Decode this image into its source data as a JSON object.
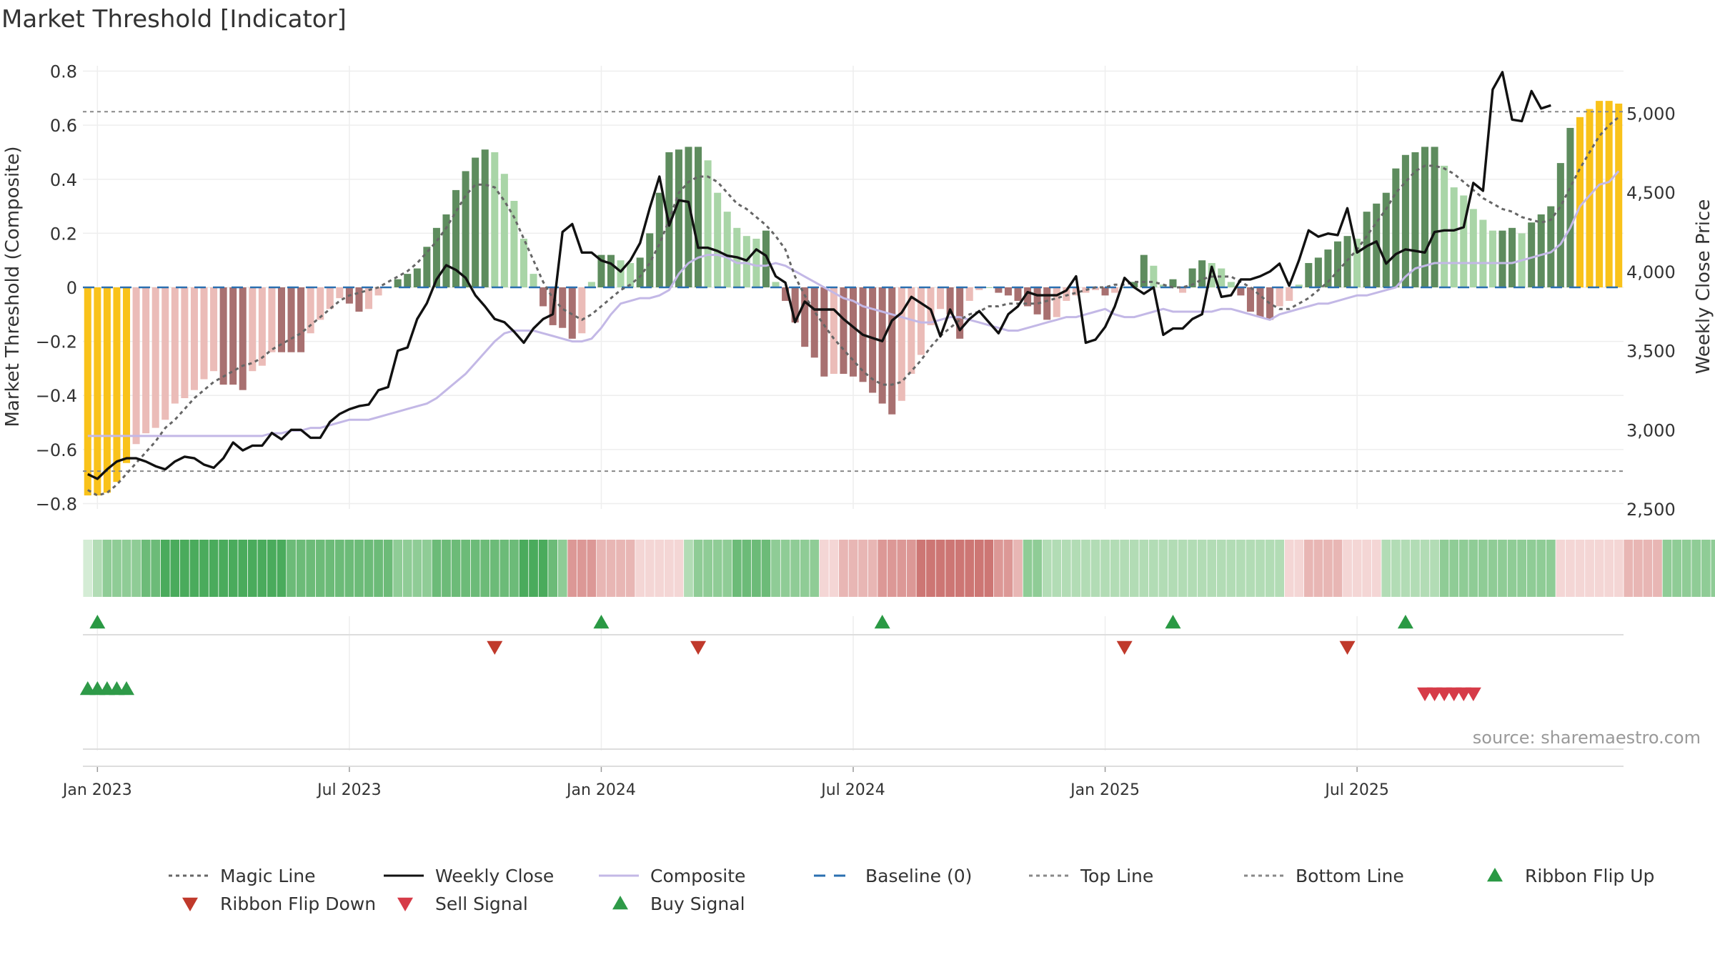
{
  "chart_data": {
    "type": "bar",
    "title": "Market Threshold [Indicator]",
    "ylabel_left": "Market Threshold (Composite)",
    "ylabel_right": "Weekly Close Price",
    "source_note": "source: sharemaestro.com",
    "ylim_left": [
      -0.82,
      0.82
    ],
    "ylim_right": [
      2500,
      5300
    ],
    "left_ticks": [
      0.8,
      0.6,
      0.4,
      0.2,
      0,
      -0.2,
      -0.4,
      -0.6,
      -0.8
    ],
    "left_tick_labels": [
      "0.8",
      "0.6",
      "0.4",
      "0.2",
      "0",
      "−0.2",
      "−0.4",
      "−0.6",
      "−0.8"
    ],
    "right_ticks": [
      5000,
      4500,
      4000,
      3500,
      3000,
      2500
    ],
    "right_tick_labels": [
      "5,000",
      "4,500",
      "4,000",
      "3,500",
      "3,000",
      "2,500"
    ],
    "x_tick_labels": [
      "Jan 2023",
      "Jul 2023",
      "Jan 2024",
      "Jul 2024",
      "Jan 2025",
      "Jul 2025"
    ],
    "x_tick_weeks": [
      1,
      27,
      53,
      79,
      105,
      131
    ],
    "top_line": 0.65,
    "bottom_line": -0.68,
    "grid": true,
    "legend_position": "bottom",
    "colors": {
      "bull_dark": "#5e8c5e",
      "bull_light": "#a9d5a7",
      "bear_dark": "#a87070",
      "bear_light": "#ebbcb8",
      "extreme": "#f9c21a",
      "magic_line": "#666666",
      "weekly_close": "#111111",
      "composite": "#c3b8e6",
      "baseline": "#2a6fb0",
      "threshold_lines": "#888888",
      "flip_up": "#2a9944",
      "flip_down": "#c0392b",
      "sell_signal": "#d63b48",
      "buy_signal": "#2e9a48"
    },
    "histogram": [
      -0.77,
      -0.77,
      -0.76,
      -0.72,
      -0.65,
      -0.58,
      -0.54,
      -0.52,
      -0.49,
      -0.43,
      -0.41,
      -0.38,
      -0.34,
      -0.31,
      -0.36,
      -0.36,
      -0.38,
      -0.31,
      -0.29,
      -0.24,
      -0.24,
      -0.24,
      -0.24,
      -0.17,
      -0.12,
      -0.08,
      -0.04,
      -0.06,
      -0.09,
      -0.08,
      -0.03,
      0.0,
      0.03,
      0.05,
      0.07,
      0.15,
      0.22,
      0.27,
      0.36,
      0.43,
      0.48,
      0.51,
      0.5,
      0.42,
      0.32,
      0.18,
      0.05,
      -0.07,
      -0.14,
      -0.15,
      -0.19,
      -0.17,
      0.02,
      0.12,
      0.12,
      0.1,
      0.09,
      0.11,
      0.2,
      0.35,
      0.5,
      0.51,
      0.52,
      0.52,
      0.47,
      0.35,
      0.28,
      0.22,
      0.19,
      0.18,
      0.21,
      0.02,
      -0.05,
      -0.13,
      -0.22,
      -0.26,
      -0.33,
      -0.32,
      -0.32,
      -0.33,
      -0.35,
      -0.39,
      -0.43,
      -0.47,
      -0.42,
      -0.32,
      -0.25,
      -0.14,
      -0.08,
      -0.1,
      -0.19,
      -0.05,
      -0.01,
      0.0,
      -0.02,
      -0.03,
      -0.05,
      -0.07,
      -0.1,
      -0.12,
      -0.11,
      -0.05,
      -0.03,
      -0.02,
      -0.01,
      -0.03,
      -0.02,
      0.0,
      0.02,
      0.12,
      0.08,
      0.01,
      0.03,
      -0.02,
      0.07,
      0.1,
      0.09,
      0.07,
      0.02,
      -0.03,
      -0.09,
      -0.11,
      -0.12,
      -0.07,
      -0.05,
      0.01,
      0.09,
      0.11,
      0.14,
      0.17,
      0.19,
      0.18,
      0.28,
      0.31,
      0.35,
      0.44,
      0.49,
      0.5,
      0.52,
      0.52,
      0.45,
      0.37,
      0.34,
      0.29,
      0.25,
      0.21,
      0.21,
      0.22,
      0.2,
      0.24,
      0.27,
      0.3,
      0.46,
      0.59,
      0.63,
      0.66,
      0.69,
      0.69,
      0.68
    ],
    "magic_line": [
      -0.75,
      -0.77,
      -0.76,
      -0.73,
      -0.69,
      -0.65,
      -0.61,
      -0.57,
      -0.52,
      -0.49,
      -0.45,
      -0.41,
      -0.38,
      -0.35,
      -0.33,
      -0.31,
      -0.29,
      -0.28,
      -0.26,
      -0.23,
      -0.21,
      -0.19,
      -0.17,
      -0.14,
      -0.11,
      -0.08,
      -0.05,
      -0.03,
      -0.02,
      -0.01,
      0.0,
      0.02,
      0.04,
      0.06,
      0.09,
      0.13,
      0.17,
      0.22,
      0.28,
      0.34,
      0.38,
      0.38,
      0.37,
      0.32,
      0.26,
      0.18,
      0.1,
      0.02,
      -0.04,
      -0.08,
      -0.1,
      -0.12,
      -0.1,
      -0.07,
      -0.04,
      -0.01,
      0.01,
      0.04,
      0.09,
      0.16,
      0.25,
      0.35,
      0.39,
      0.41,
      0.41,
      0.39,
      0.35,
      0.31,
      0.29,
      0.26,
      0.23,
      0.19,
      0.14,
      0.04,
      -0.03,
      -0.09,
      -0.14,
      -0.19,
      -0.23,
      -0.27,
      -0.31,
      -0.34,
      -0.36,
      -0.36,
      -0.35,
      -0.31,
      -0.27,
      -0.22,
      -0.18,
      -0.15,
      -0.12,
      -0.1,
      -0.09,
      -0.07,
      -0.07,
      -0.06,
      -0.06,
      -0.06,
      -0.06,
      -0.05,
      -0.04,
      -0.03,
      -0.02,
      -0.01,
      0.0,
      0.0,
      0.01,
      0.01,
      0.02,
      0.02,
      0.02,
      0.01,
      0.0,
      0.0,
      0.01,
      0.03,
      0.04,
      0.04,
      0.04,
      0.02,
      0.0,
      -0.03,
      -0.06,
      -0.08,
      -0.08,
      -0.06,
      -0.04,
      -0.01,
      0.02,
      0.06,
      0.1,
      0.14,
      0.19,
      0.24,
      0.29,
      0.35,
      0.39,
      0.43,
      0.45,
      0.45,
      0.44,
      0.42,
      0.39,
      0.36,
      0.33,
      0.31,
      0.29,
      0.28,
      0.26,
      0.25,
      0.24,
      0.25,
      0.3,
      0.37,
      0.44,
      0.5,
      0.56,
      0.6,
      0.63
    ],
    "composite_line": [
      -0.55,
      -0.55,
      -0.55,
      -0.55,
      -0.55,
      -0.55,
      -0.55,
      -0.55,
      -0.55,
      -0.55,
      -0.55,
      -0.55,
      -0.55,
      -0.55,
      -0.55,
      -0.55,
      -0.55,
      -0.55,
      -0.55,
      -0.54,
      -0.54,
      -0.53,
      -0.53,
      -0.52,
      -0.52,
      -0.51,
      -0.5,
      -0.49,
      -0.49,
      -0.49,
      -0.48,
      -0.47,
      -0.46,
      -0.45,
      -0.44,
      -0.43,
      -0.41,
      -0.38,
      -0.35,
      -0.32,
      -0.28,
      -0.24,
      -0.2,
      -0.17,
      -0.16,
      -0.16,
      -0.16,
      -0.17,
      -0.18,
      -0.19,
      -0.2,
      -0.2,
      -0.19,
      -0.15,
      -0.1,
      -0.06,
      -0.05,
      -0.04,
      -0.04,
      -0.03,
      -0.01,
      0.05,
      0.09,
      0.11,
      0.12,
      0.12,
      0.11,
      0.09,
      0.09,
      0.08,
      0.08,
      0.09,
      0.08,
      0.06,
      0.04,
      0.02,
      0.0,
      -0.02,
      -0.04,
      -0.05,
      -0.07,
      -0.08,
      -0.09,
      -0.1,
      -0.11,
      -0.12,
      -0.13,
      -0.13,
      -0.12,
      -0.11,
      -0.11,
      -0.12,
      -0.13,
      -0.14,
      -0.15,
      -0.16,
      -0.16,
      -0.15,
      -0.14,
      -0.13,
      -0.12,
      -0.11,
      -0.11,
      -0.1,
      -0.09,
      -0.08,
      -0.1,
      -0.11,
      -0.11,
      -0.1,
      -0.09,
      -0.08,
      -0.09,
      -0.09,
      -0.09,
      -0.09,
      -0.09,
      -0.08,
      -0.08,
      -0.09,
      -0.1,
      -0.11,
      -0.12,
      -0.1,
      -0.09,
      -0.08,
      -0.07,
      -0.06,
      -0.06,
      -0.05,
      -0.04,
      -0.03,
      -0.03,
      -0.02,
      -0.01,
      0.0,
      0.04,
      0.07,
      0.08,
      0.09,
      0.09,
      0.09,
      0.09,
      0.09,
      0.09,
      0.09,
      0.09,
      0.09,
      0.1,
      0.11,
      0.12,
      0.13,
      0.16,
      0.22,
      0.3,
      0.34,
      0.38,
      0.39,
      0.43
    ],
    "weekly_close": [
      2720,
      2690,
      2750,
      2800,
      2820,
      2820,
      2800,
      2770,
      2750,
      2800,
      2830,
      2820,
      2780,
      2760,
      2820,
      2920,
      2870,
      2900,
      2900,
      2980,
      2940,
      3000,
      3000,
      2950,
      2950,
      3050,
      3100,
      3130,
      3150,
      3160,
      3250,
      3270,
      3500,
      3520,
      3700,
      3800,
      3950,
      4040,
      4010,
      3960,
      3850,
      3780,
      3700,
      3680,
      3620,
      3550,
      3640,
      3700,
      3730,
      4250,
      4300,
      4120,
      4120,
      4070,
      4050,
      4000,
      4070,
      4180,
      4400,
      4600,
      4290,
      4450,
      4440,
      4150,
      4150,
      4130,
      4100,
      4090,
      4070,
      4140,
      4100,
      3970,
      3930,
      3680,
      3810,
      3760,
      3760,
      3760,
      3700,
      3650,
      3600,
      3580,
      3560,
      3690,
      3740,
      3840,
      3800,
      3760,
      3590,
      3760,
      3630,
      3700,
      3750,
      3680,
      3610,
      3730,
      3780,
      3870,
      3850,
      3850,
      3850,
      3880,
      3970,
      3550,
      3570,
      3650,
      3780,
      3960,
      3900,
      3860,
      3900,
      3600,
      3640,
      3640,
      3700,
      3730,
      4030,
      3840,
      3850,
      3950,
      3950,
      3970,
      4000,
      4050,
      3910,
      4070,
      4260,
      4220,
      4240,
      4230,
      4400,
      4120,
      4160,
      4190,
      4050,
      4110,
      4140,
      4130,
      4120,
      4250,
      4260,
      4260,
      4280,
      4560,
      4510,
      5150,
      5260,
      4960,
      4950,
      5140,
      5030,
      5050
    ],
    "ribbon": [
      1,
      2,
      3,
      3,
      3,
      3,
      4,
      4,
      5,
      5,
      5,
      5,
      5,
      5,
      5,
      5,
      5,
      5,
      5,
      5,
      5,
      4,
      4,
      4,
      4,
      4,
      4,
      4,
      4,
      4,
      4,
      4,
      3,
      3,
      3,
      3,
      4,
      4,
      4,
      4,
      4,
      4,
      4,
      4,
      4,
      5,
      5,
      5,
      4,
      3,
      -3,
      -3,
      -3,
      -2,
      -2,
      -2,
      -2,
      -1,
      -1,
      -1,
      -1,
      -1,
      2,
      3,
      3,
      3,
      3,
      4,
      4,
      4,
      4,
      3,
      3,
      3,
      3,
      3,
      -1,
      -1,
      -2,
      -2,
      -2,
      -2,
      -3,
      -3,
      -3,
      -3,
      -4,
      -4,
      -4,
      -4,
      -4,
      -4,
      -4,
      -4,
      -3,
      -3,
      -2,
      3,
      3,
      2,
      2,
      2,
      2,
      2,
      2,
      2,
      2,
      2,
      2,
      2,
      2,
      2,
      2,
      2,
      2,
      2,
      2,
      2,
      2,
      2,
      2,
      2,
      2,
      2,
      -1,
      -1,
      -2,
      -2,
      -2,
      -2,
      -1,
      -1,
      -1,
      -1,
      2,
      2,
      2,
      2,
      2,
      2,
      3,
      3,
      3,
      3,
      3,
      3,
      3,
      3,
      3,
      3,
      3,
      3,
      -1,
      -1,
      -1,
      -1,
      -1,
      -1,
      -1,
      -2,
      -2,
      -2,
      -2,
      3,
      3,
      3,
      3,
      3,
      3,
      3,
      3
    ],
    "ribbon_flip_up_weeks": [
      1,
      53,
      82,
      112,
      136
    ],
    "ribbon_flip_down_weeks": [
      42,
      63,
      107,
      130
    ],
    "buy_signal_weeks": [
      0,
      1,
      2,
      3,
      4
    ],
    "sell_signal_weeks": [
      138,
      139,
      140,
      141,
      142,
      143
    ],
    "legend": [
      {
        "label": "Magic Line",
        "kind": "dotted-line",
        "color": "#666666"
      },
      {
        "label": "Weekly Close",
        "kind": "solid-line",
        "color": "#111111"
      },
      {
        "label": "Composite",
        "kind": "solid-line",
        "color": "#c3b8e6"
      },
      {
        "label": "Baseline (0)",
        "kind": "dashed-line",
        "color": "#2a6fb0"
      },
      {
        "label": "Top Line",
        "kind": "dotted-line",
        "color": "#888888"
      },
      {
        "label": "Bottom Line",
        "kind": "dotted-line",
        "color": "#888888"
      },
      {
        "label": "Ribbon Flip Up",
        "kind": "tri-up",
        "color": "#2a9944"
      },
      {
        "label": "Ribbon Flip Down",
        "kind": "tri-down",
        "color": "#c0392b"
      },
      {
        "label": "Sell Signal",
        "kind": "tri-down",
        "color": "#d63b48"
      },
      {
        "label": "Buy Signal",
        "kind": "tri-up",
        "color": "#2e9a48"
      }
    ]
  }
}
